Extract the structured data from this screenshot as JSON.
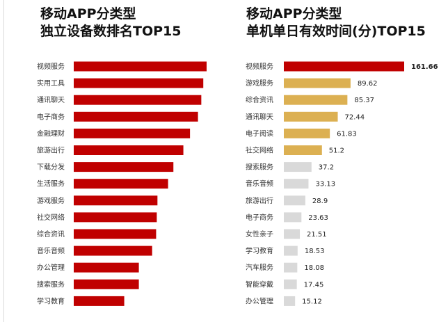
{
  "colors": {
    "red": "#c00000",
    "gold": "#dcb052",
    "gray": "#d9d9d9"
  },
  "chart_data": [
    {
      "type": "bar",
      "orientation": "horizontal",
      "title_lines": [
        "移动APP分类型",
        "独立设备数排名TOP15"
      ],
      "categories": [
        "视频服务",
        "实用工具",
        "通讯聊天",
        "电子商务",
        "金融理财",
        "旅游出行",
        "下载分发",
        "生活服务",
        "游戏服务",
        "社交网络",
        "综合资讯",
        "音乐音频",
        "办公管理",
        "搜索服务",
        "学习教育"
      ],
      "values": [
        100,
        97.5,
        96,
        93.5,
        87.5,
        82.5,
        75,
        71,
        63,
        62.5,
        62,
        59,
        49,
        49,
        38
      ],
      "value_labels_shown": false,
      "xlim": [
        0,
        100
      ],
      "colors": [
        "#c00000",
        "#c00000",
        "#c00000",
        "#c00000",
        "#c00000",
        "#c00000",
        "#c00000",
        "#c00000",
        "#c00000",
        "#c00000",
        "#c00000",
        "#c00000",
        "#c00000",
        "#c00000",
        "#c00000"
      ]
    },
    {
      "type": "bar",
      "orientation": "horizontal",
      "title_lines": [
        "移动APP分类型",
        "单机单日有效时间(分)TOP15"
      ],
      "categories": [
        "视频服务",
        "游戏服务",
        "综合资讯",
        "通讯聊天",
        "电子阅读",
        "社交网络",
        "搜索服务",
        "音乐音频",
        "旅游出行",
        "电子商务",
        "女性亲子",
        "学习教育",
        "汽车服务",
        "智能穿戴",
        "办公管理"
      ],
      "values": [
        161.66,
        89.62,
        85.37,
        72.44,
        61.83,
        51.2,
        37.2,
        33.13,
        28.9,
        23.63,
        21.51,
        18.53,
        18.08,
        17.45,
        15.12
      ],
      "value_labels": [
        "161.66",
        "89.62",
        "85.37",
        "72.44",
        "61.83",
        "51.2",
        "37.2",
        "33.13",
        "28.9",
        "23.63",
        "21.51",
        "18.53",
        "18.08",
        "17.45",
        "15.12"
      ],
      "value_labels_shown": true,
      "xlim": [
        0,
        161.66
      ],
      "colors": [
        "#c00000",
        "#dcb052",
        "#dcb052",
        "#dcb052",
        "#dcb052",
        "#dcb052",
        "#d9d9d9",
        "#d9d9d9",
        "#d9d9d9",
        "#d9d9d9",
        "#d9d9d9",
        "#d9d9d9",
        "#d9d9d9",
        "#d9d9d9",
        "#d9d9d9"
      ]
    }
  ]
}
